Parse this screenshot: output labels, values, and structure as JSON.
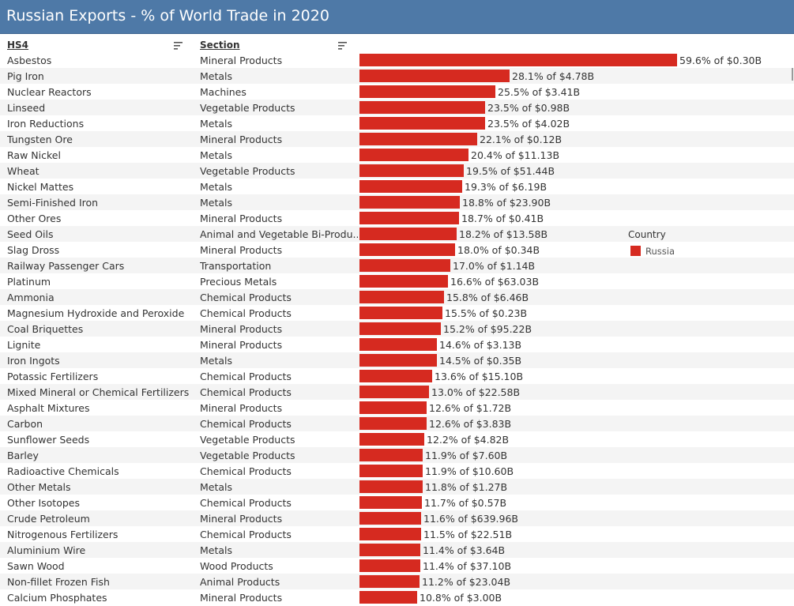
{
  "header": {
    "title": "Russian Exports - % of World Trade in 2020"
  },
  "columns": {
    "hs4": "HS4",
    "section": "Section"
  },
  "legend": {
    "title": "Country",
    "items": [
      {
        "label": "Russia",
        "color": "#d62a20"
      }
    ]
  },
  "chart_data": {
    "type": "bar",
    "orientation": "horizontal",
    "title": "Russian Exports - % of World Trade in 2020",
    "xlabel": "",
    "ylabel": "",
    "xlim": [
      0,
      59.6
    ],
    "grid": false,
    "legend_placement": "right",
    "series": [
      {
        "name": "Russia",
        "color": "#d62a20"
      }
    ],
    "rows": [
      {
        "hs4": "Asbestos",
        "section": "Mineral Products",
        "value": 59.6,
        "label": "59.6% of $0.30B"
      },
      {
        "hs4": "Pig Iron",
        "section": "Metals",
        "value": 28.1,
        "label": "28.1% of $4.78B"
      },
      {
        "hs4": "Nuclear Reactors",
        "section": "Machines",
        "value": 25.5,
        "label": "25.5% of $3.41B"
      },
      {
        "hs4": "Linseed",
        "section": "Vegetable Products",
        "value": 23.5,
        "label": "23.5% of $0.98B"
      },
      {
        "hs4": "Iron Reductions",
        "section": "Metals",
        "value": 23.5,
        "label": "23.5% of $4.02B"
      },
      {
        "hs4": "Tungsten Ore",
        "section": "Mineral Products",
        "value": 22.1,
        "label": "22.1% of $0.12B"
      },
      {
        "hs4": "Raw Nickel",
        "section": "Metals",
        "value": 20.4,
        "label": "20.4% of $11.13B"
      },
      {
        "hs4": "Wheat",
        "section": "Vegetable Products",
        "value": 19.5,
        "label": "19.5% of $51.44B"
      },
      {
        "hs4": "Nickel Mattes",
        "section": "Metals",
        "value": 19.3,
        "label": "19.3% of $6.19B"
      },
      {
        "hs4": "Semi-Finished Iron",
        "section": "Metals",
        "value": 18.8,
        "label": "18.8% of $23.90B"
      },
      {
        "hs4": "Other Ores",
        "section": "Mineral Products",
        "value": 18.7,
        "label": "18.7% of $0.41B"
      },
      {
        "hs4": "Seed Oils",
        "section": "Animal and Vegetable Bi-Produ..",
        "value": 18.2,
        "label": "18.2% of $13.58B"
      },
      {
        "hs4": "Slag Dross",
        "section": "Mineral Products",
        "value": 18.0,
        "label": "18.0% of $0.34B"
      },
      {
        "hs4": "Railway Passenger Cars",
        "section": "Transportation",
        "value": 17.0,
        "label": "17.0% of $1.14B"
      },
      {
        "hs4": "Platinum",
        "section": "Precious Metals",
        "value": 16.6,
        "label": "16.6% of $63.03B"
      },
      {
        "hs4": "Ammonia",
        "section": "Chemical Products",
        "value": 15.8,
        "label": "15.8% of $6.46B"
      },
      {
        "hs4": "Magnesium Hydroxide and Peroxide",
        "section": "Chemical Products",
        "value": 15.5,
        "label": "15.5% of $0.23B"
      },
      {
        "hs4": "Coal Briquettes",
        "section": "Mineral Products",
        "value": 15.2,
        "label": "15.2% of $95.22B"
      },
      {
        "hs4": "Lignite",
        "section": "Mineral Products",
        "value": 14.6,
        "label": "14.6% of $3.13B"
      },
      {
        "hs4": "Iron Ingots",
        "section": "Metals",
        "value": 14.5,
        "label": "14.5% of $0.35B"
      },
      {
        "hs4": "Potassic Fertilizers",
        "section": "Chemical Products",
        "value": 13.6,
        "label": "13.6% of $15.10B"
      },
      {
        "hs4": "Mixed Mineral or Chemical Fertilizers",
        "section": "Chemical Products",
        "value": 13.0,
        "label": "13.0% of $22.58B"
      },
      {
        "hs4": "Asphalt Mixtures",
        "section": "Mineral Products",
        "value": 12.6,
        "label": "12.6% of $1.72B"
      },
      {
        "hs4": "Carbon",
        "section": "Chemical Products",
        "value": 12.6,
        "label": "12.6% of $3.83B"
      },
      {
        "hs4": "Sunflower Seeds",
        "section": "Vegetable Products",
        "value": 12.2,
        "label": "12.2% of $4.82B"
      },
      {
        "hs4": "Barley",
        "section": "Vegetable Products",
        "value": 11.9,
        "label": "11.9% of $7.60B"
      },
      {
        "hs4": "Radioactive Chemicals",
        "section": "Chemical Products",
        "value": 11.9,
        "label": "11.9% of $10.60B"
      },
      {
        "hs4": "Other Metals",
        "section": "Metals",
        "value": 11.8,
        "label": "11.8% of $1.27B"
      },
      {
        "hs4": "Other Isotopes",
        "section": "Chemical Products",
        "value": 11.7,
        "label": "11.7% of $0.57B"
      },
      {
        "hs4": "Crude Petroleum",
        "section": "Mineral Products",
        "value": 11.6,
        "label": "11.6% of $639.96B"
      },
      {
        "hs4": "Nitrogenous Fertilizers",
        "section": "Chemical Products",
        "value": 11.5,
        "label": "11.5% of $22.51B"
      },
      {
        "hs4": "Aluminium Wire",
        "section": "Metals",
        "value": 11.4,
        "label": "11.4% of $3.64B"
      },
      {
        "hs4": "Sawn Wood",
        "section": "Wood Products",
        "value": 11.4,
        "label": "11.4% of $37.10B"
      },
      {
        "hs4": "Non-fillet Frozen Fish",
        "section": "Animal Products",
        "value": 11.2,
        "label": "11.2% of $23.04B"
      },
      {
        "hs4": "Calcium Phosphates",
        "section": "Mineral Products",
        "value": 10.8,
        "label": "10.8% of $3.00B"
      }
    ]
  }
}
